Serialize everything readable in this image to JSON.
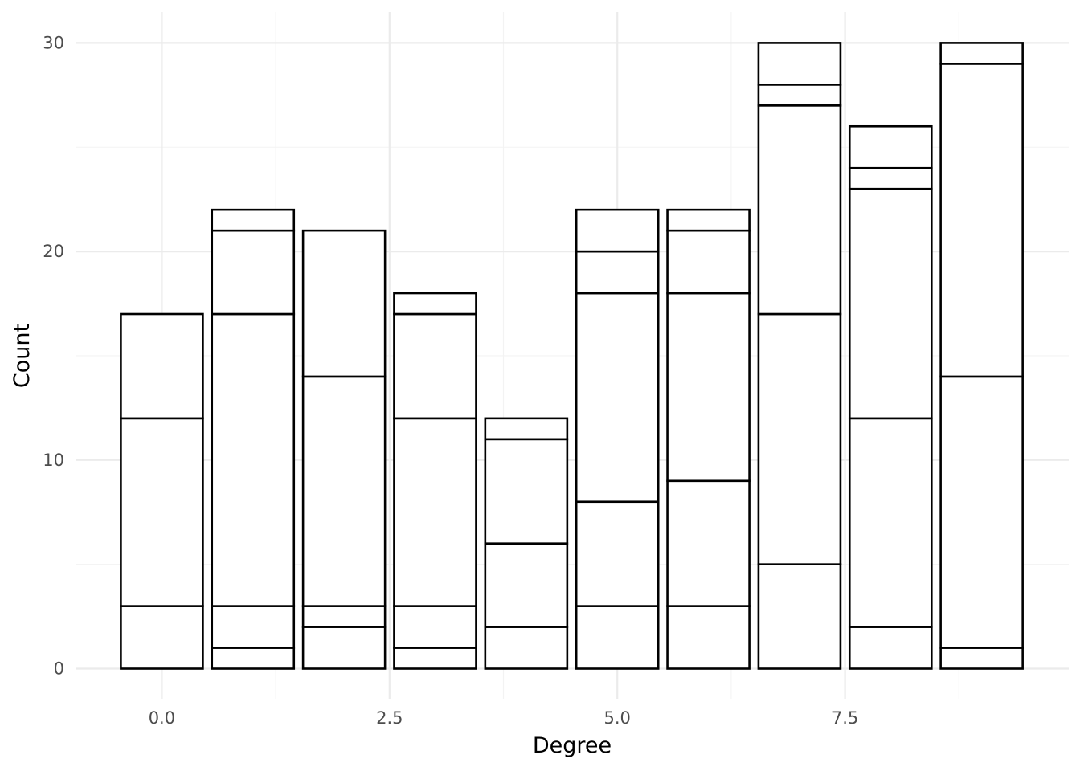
{
  "chart_data": {
    "type": "bar",
    "stacked": true,
    "xlabel": "Degree",
    "ylabel": "Count",
    "x": [
      0,
      1,
      2,
      3,
      4,
      5,
      6,
      7,
      8,
      9
    ],
    "stack_boundaries": [
      [
        3,
        12,
        17
      ],
      [
        1,
        3,
        17,
        21,
        22
      ],
      [
        2,
        3,
        14,
        21
      ],
      [
        1,
        3,
        12,
        17,
        18
      ],
      [
        2,
        6,
        11,
        12
      ],
      [
        3,
        8,
        18,
        20,
        22
      ],
      [
        3,
        9,
        18,
        21,
        22
      ],
      [
        5,
        17,
        27,
        28,
        30
      ],
      [
        2,
        12,
        23,
        24,
        26
      ],
      [
        1,
        14,
        29,
        30
      ]
    ],
    "totals": [
      17,
      22,
      21,
      18,
      12,
      22,
      22,
      30,
      26,
      30
    ],
    "xlim": [
      -0.5,
      9.5
    ],
    "ylim": [
      0,
      30
    ],
    "x_ticks": [
      0.0,
      2.5,
      5.0,
      7.5
    ],
    "x_tick_labels": [
      "0.0",
      "2.5",
      "5.0",
      "7.5"
    ],
    "y_ticks": [
      0,
      10,
      20,
      30
    ],
    "y_tick_labels": [
      "0",
      "10",
      "20",
      "30"
    ],
    "grid": true,
    "legend": "none",
    "bar_fill": "#ffffff",
    "bar_outline": "#000000"
  }
}
